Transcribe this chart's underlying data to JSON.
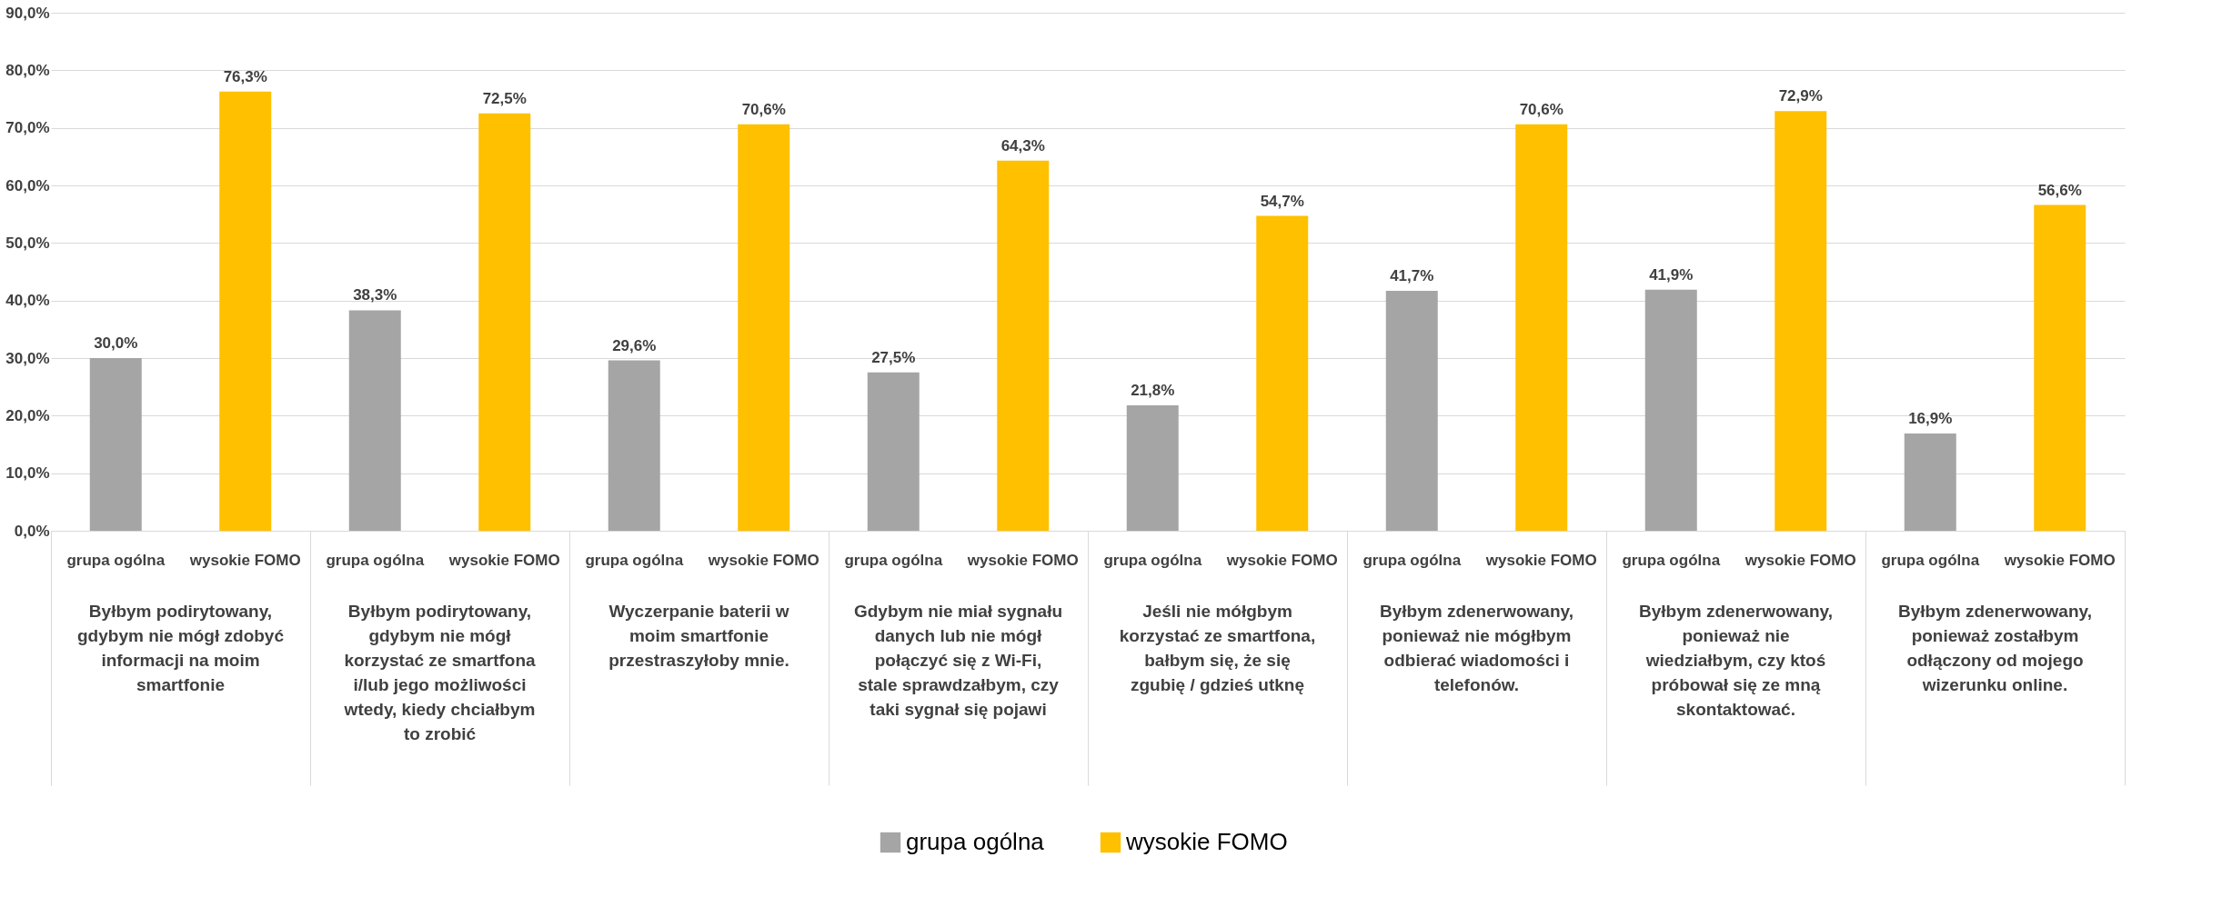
{
  "chart_data": {
    "type": "bar",
    "categories": [
      "Byłbym podirytowany, gdybym nie mógł zdobyć informacji na moim smartfonie",
      "Byłbym podirytowany, gdybym nie mógł korzystać ze smartfona i/lub jego możliwości wtedy, kiedy chciałbym to zrobić",
      "Wyczerpanie baterii w moim smartfonie przestraszyłoby mnie.",
      "Gdybym nie miał sygnału danych lub nie mógł połączyć się z Wi-Fi, stale sprawdzałbym, czy taki sygnał się pojawi",
      "Jeśli nie mółgbym korzystać ze smartfona, bałbym się, że się zgubię / gdzieś utknę",
      "Byłbym zdenerwowany, ponieważ nie mógłbym odbierać wiadomości i telefonów.",
      "Byłbym zdenerwowany, ponieważ nie wiedziałbym, czy ktoś próbował się ze mną skontaktować.",
      "Byłbym zdenerwowany, ponieważ zostałbym odłączony od mojego wizerunku online."
    ],
    "series": [
      {
        "name": "grupa ogólna",
        "color": "#a5a5a5",
        "values": [
          30.0,
          38.3,
          29.6,
          27.5,
          21.8,
          41.7,
          41.9,
          16.9
        ],
        "value_labels": [
          "30,0%",
          "38,3%",
          "29,6%",
          "27,5%",
          "21,8%",
          "41,7%",
          "41,9%",
          "16,9%"
        ]
      },
      {
        "name": "wysokie FOMO",
        "color": "#ffc000",
        "values": [
          76.3,
          72.5,
          70.6,
          64.3,
          54.7,
          70.6,
          72.9,
          56.6
        ],
        "value_labels": [
          "76,3%",
          "72,5%",
          "70,6%",
          "64,3%",
          "54,7%",
          "70,6%",
          "72,9%",
          "56,6%"
        ]
      }
    ],
    "ylim": [
      0,
      90
    ],
    "yticks": [
      {
        "value": 0,
        "label": "0,0%"
      },
      {
        "value": 10,
        "label": "10,0%"
      },
      {
        "value": 20,
        "label": "20,0%"
      },
      {
        "value": 30,
        "label": "30,0%"
      },
      {
        "value": 40,
        "label": "40,0%"
      },
      {
        "value": 50,
        "label": "50,0%"
      },
      {
        "value": 60,
        "label": "60,0%"
      },
      {
        "value": 70,
        "label": "70,0%"
      },
      {
        "value": 80,
        "label": "80,0%"
      },
      {
        "value": 90,
        "label": "90,0%"
      }
    ],
    "grid": "y",
    "legend": "bottom"
  }
}
